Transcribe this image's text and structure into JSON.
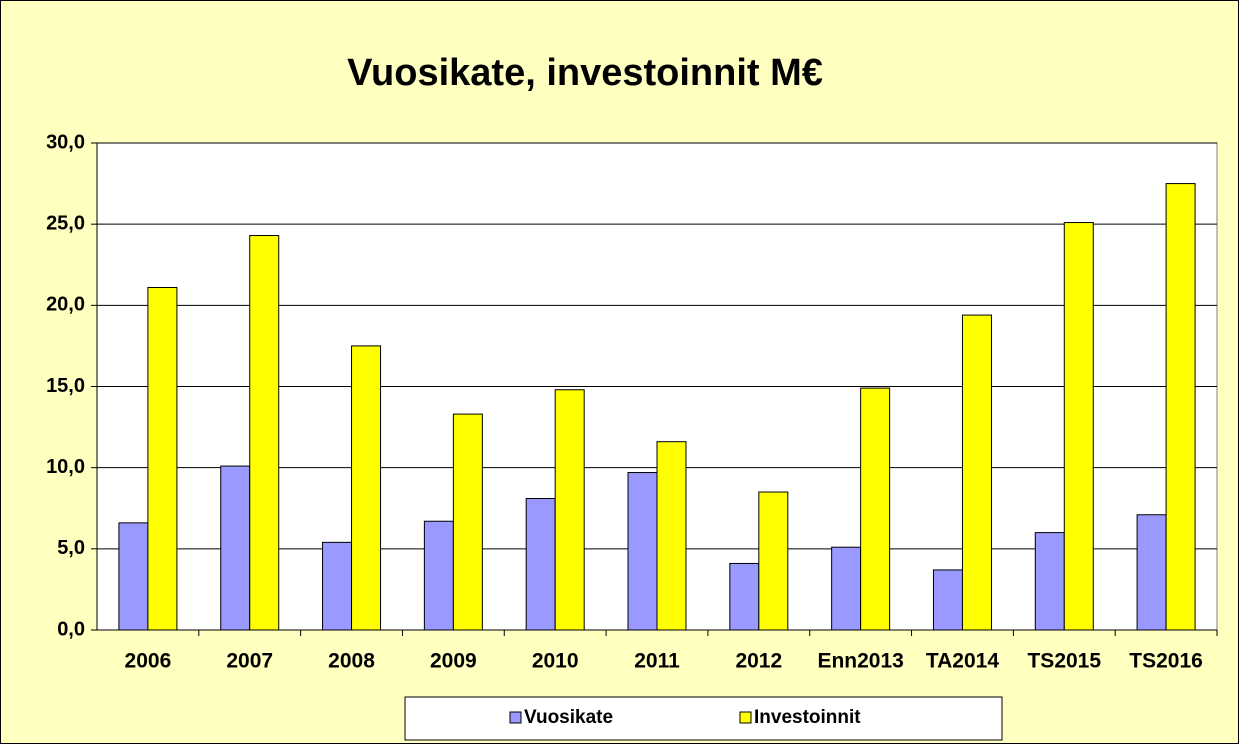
{
  "chart_data": {
    "type": "bar",
    "title": "Vuosikate,  investoinnit  M€",
    "categories": [
      "2006",
      "2007",
      "2008",
      "2009",
      "2010",
      "2011",
      "2012",
      "Enn2013",
      "TA2014",
      "TS2015",
      "TS2016"
    ],
    "series": [
      {
        "name": "Vuosikate",
        "color": "#9999ff",
        "values": [
          6.6,
          10.1,
          5.4,
          6.7,
          8.1,
          9.7,
          4.1,
          5.1,
          3.7,
          6.0,
          7.1
        ]
      },
      {
        "name": "Investoinnit",
        "color": "#ffff00",
        "values": [
          21.1,
          24.3,
          17.5,
          13.3,
          14.8,
          11.6,
          8.5,
          14.9,
          19.4,
          25.1,
          27.5
        ]
      }
    ],
    "ylim": [
      0,
      30
    ],
    "yticks": [
      {
        "value": 0,
        "label": "0,0"
      },
      {
        "value": 5,
        "label": "5,0"
      },
      {
        "value": 10,
        "label": "10,0"
      },
      {
        "value": 15,
        "label": "15,0"
      },
      {
        "value": 20,
        "label": "20,0"
      },
      {
        "value": 25,
        "label": "25,0"
      },
      {
        "value": 30,
        "label": "30,0"
      }
    ],
    "grid": true,
    "legend": "bottom"
  }
}
